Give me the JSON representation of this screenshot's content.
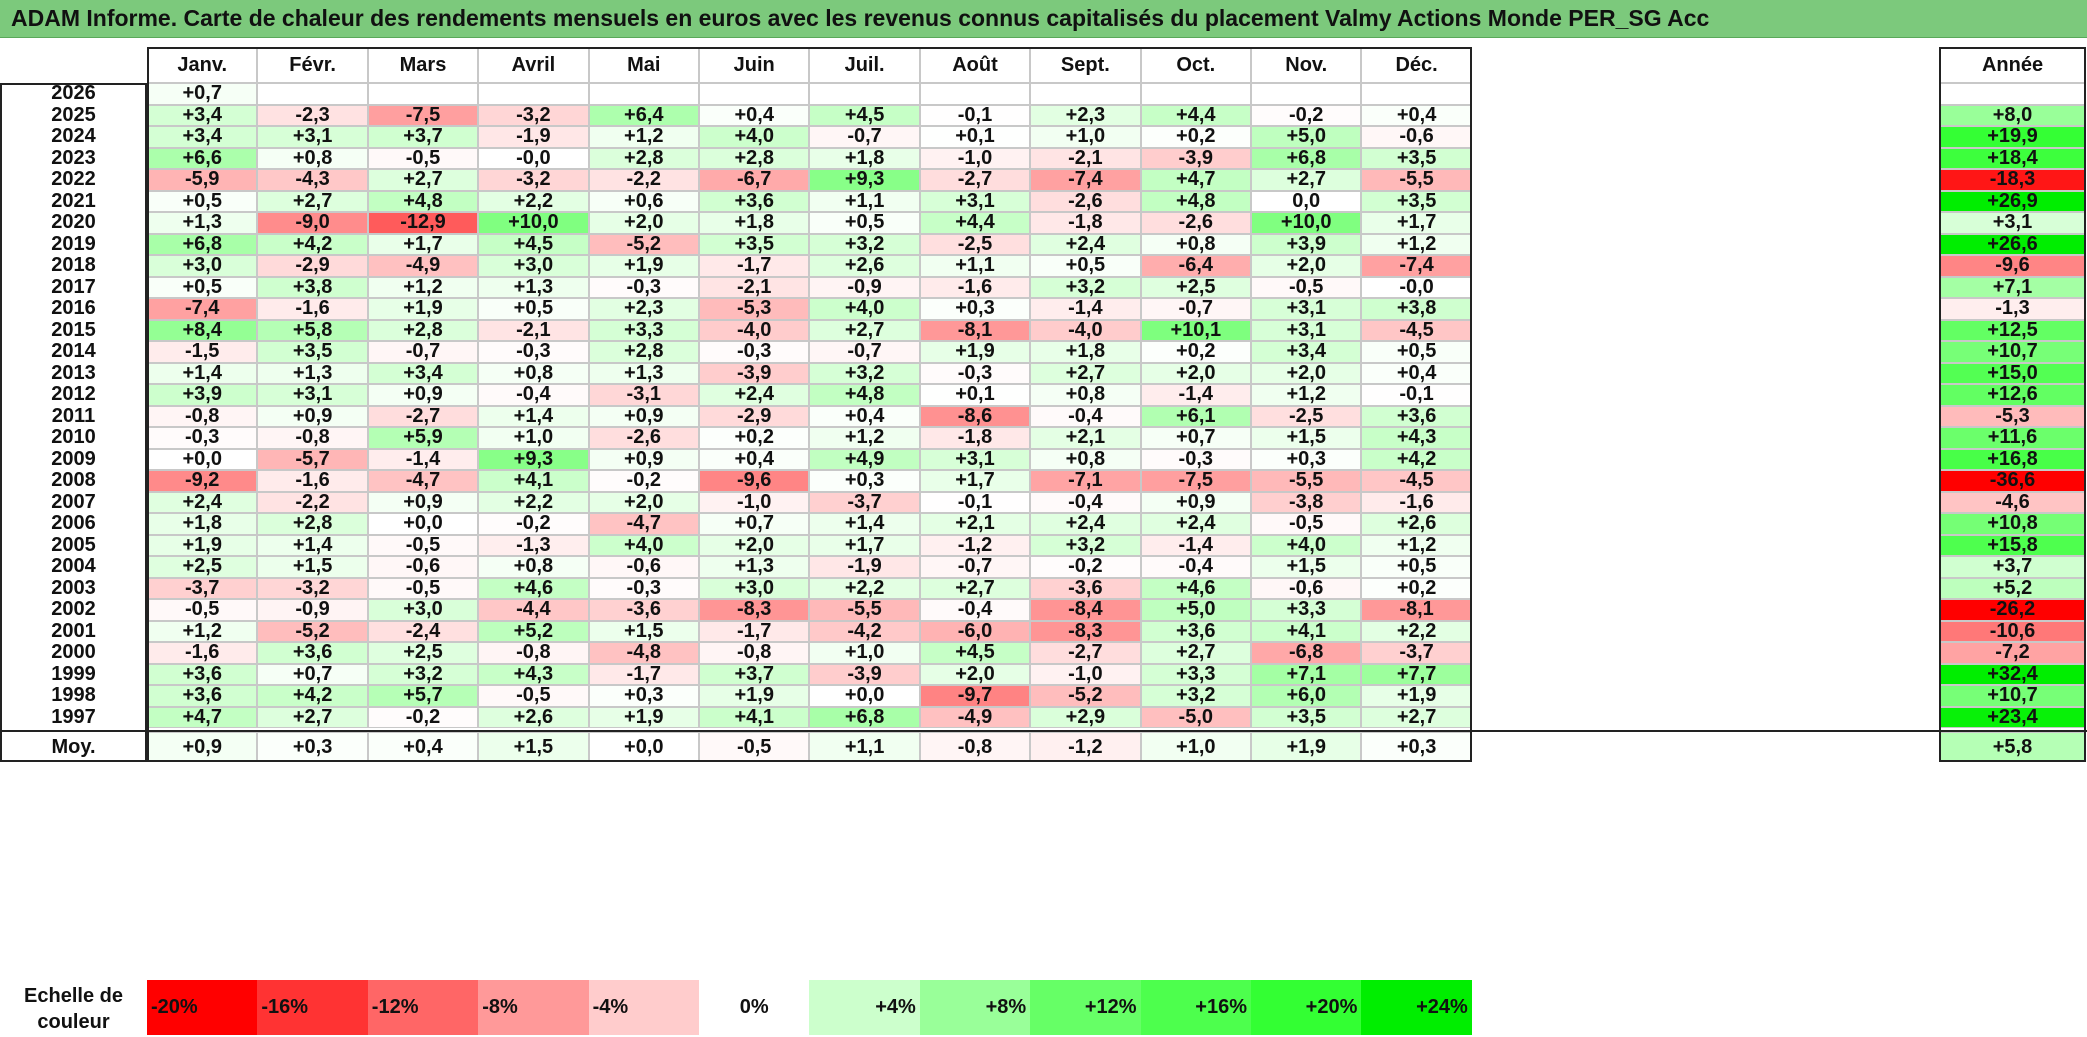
{
  "title": "ADAM Informe. Carte de chaleur des rendements mensuels en euros avec les revenus connus capitalisés du placement Valmy Actions Monde PER_SG Acc",
  "chart_data": {
    "type": "heatmap",
    "title": "ADAM Informe. Carte de chaleur des rendements mensuels en euros avec les revenus connus capitalisés du placement Valmy Actions Monde PER_SG Acc",
    "columns": [
      "Janv.",
      "Févr.",
      "Mars",
      "Avril",
      "Mai",
      "Juin",
      "Juil.",
      "Août",
      "Sept.",
      "Oct.",
      "Nov.",
      "Déc."
    ],
    "annual_header": "Année",
    "rows": [
      {
        "year": "2026",
        "values": [
          "+0,7",
          "",
          "",
          "",
          "",
          "",
          "",
          "",
          "",
          "",
          "",
          ""
        ],
        "annual": ""
      },
      {
        "year": "2025",
        "values": [
          "+3,4",
          "-2,3",
          "-7,5",
          "-3,2",
          "+6,4",
          "+0,4",
          "+4,5",
          "-0,1",
          "+2,3",
          "+4,4",
          "-0,2",
          "+0,4"
        ],
        "annual": "+8,0"
      },
      {
        "year": "2024",
        "values": [
          "+3,4",
          "+3,1",
          "+3,7",
          "-1,9",
          "+1,2",
          "+4,0",
          "-0,7",
          "+0,1",
          "+1,0",
          "+0,2",
          "+5,0",
          "-0,6"
        ],
        "annual": "+19,9"
      },
      {
        "year": "2023",
        "values": [
          "+6,6",
          "+0,8",
          "-0,5",
          "-0,0",
          "+2,8",
          "+2,8",
          "+1,8",
          "-1,0",
          "-2,1",
          "-3,9",
          "+6,8",
          "+3,5"
        ],
        "annual": "+18,4"
      },
      {
        "year": "2022",
        "values": [
          "-5,9",
          "-4,3",
          "+2,7",
          "-3,2",
          "-2,2",
          "-6,7",
          "+9,3",
          "-2,7",
          "-7,4",
          "+4,7",
          "+2,7",
          "-5,5"
        ],
        "annual": "-18,3"
      },
      {
        "year": "2021",
        "values": [
          "+0,5",
          "+2,7",
          "+4,8",
          "+2,2",
          "+0,6",
          "+3,6",
          "+1,1",
          "+3,1",
          "-2,6",
          "+4,8",
          "0,0",
          "+3,5"
        ],
        "annual": "+26,9"
      },
      {
        "year": "2020",
        "values": [
          "+1,3",
          "-9,0",
          "-12,9",
          "+10,0",
          "+2,0",
          "+1,8",
          "+0,5",
          "+4,4",
          "-1,8",
          "-2,6",
          "+10,0",
          "+1,7"
        ],
        "annual": "+3,1"
      },
      {
        "year": "2019",
        "values": [
          "+6,8",
          "+4,2",
          "+1,7",
          "+4,5",
          "-5,2",
          "+3,5",
          "+3,2",
          "-2,5",
          "+2,4",
          "+0,8",
          "+3,9",
          "+1,2"
        ],
        "annual": "+26,6"
      },
      {
        "year": "2018",
        "values": [
          "+3,0",
          "-2,9",
          "-4,9",
          "+3,0",
          "+1,9",
          "-1,7",
          "+2,6",
          "+1,1",
          "+0,5",
          "-6,4",
          "+2,0",
          "-7,4"
        ],
        "annual": "-9,6"
      },
      {
        "year": "2017",
        "values": [
          "+0,5",
          "+3,8",
          "+1,2",
          "+1,3",
          "-0,3",
          "-2,1",
          "-0,9",
          "-1,6",
          "+3,2",
          "+2,5",
          "-0,5",
          "-0,0"
        ],
        "annual": "+7,1"
      },
      {
        "year": "2016",
        "values": [
          "-7,4",
          "-1,6",
          "+1,9",
          "+0,5",
          "+2,3",
          "-5,3",
          "+4,0",
          "+0,3",
          "-1,4",
          "-0,7",
          "+3,1",
          "+3,8"
        ],
        "annual": "-1,3"
      },
      {
        "year": "2015",
        "values": [
          "+8,4",
          "+5,8",
          "+2,8",
          "-2,1",
          "+3,3",
          "-4,0",
          "+2,7",
          "-8,1",
          "-4,0",
          "+10,1",
          "+3,1",
          "-4,5"
        ],
        "annual": "+12,5"
      },
      {
        "year": "2014",
        "values": [
          "-1,5",
          "+3,5",
          "-0,7",
          "-0,3",
          "+2,8",
          "-0,3",
          "-0,7",
          "+1,9",
          "+1,8",
          "+0,2",
          "+3,4",
          "+0,5"
        ],
        "annual": "+10,7"
      },
      {
        "year": "2013",
        "values": [
          "+1,4",
          "+1,3",
          "+3,4",
          "+0,8",
          "+1,3",
          "-3,9",
          "+3,2",
          "-0,3",
          "+2,7",
          "+2,0",
          "+2,0",
          "+0,4"
        ],
        "annual": "+15,0"
      },
      {
        "year": "2012",
        "values": [
          "+3,9",
          "+3,1",
          "+0,9",
          "-0,4",
          "-3,1",
          "+2,4",
          "+4,8",
          "+0,1",
          "+0,8",
          "-1,4",
          "+1,2",
          "-0,1"
        ],
        "annual": "+12,6"
      },
      {
        "year": "2011",
        "values": [
          "-0,8",
          "+0,9",
          "-2,7",
          "+1,4",
          "+0,9",
          "-2,9",
          "+0,4",
          "-8,6",
          "-0,4",
          "+6,1",
          "-2,5",
          "+3,6"
        ],
        "annual": "-5,3"
      },
      {
        "year": "2010",
        "values": [
          "-0,3",
          "-0,8",
          "+5,9",
          "+1,0",
          "-2,6",
          "+0,2",
          "+1,2",
          "-1,8",
          "+2,1",
          "+0,7",
          "+1,5",
          "+4,3"
        ],
        "annual": "+11,6"
      },
      {
        "year": "2009",
        "values": [
          "+0,0",
          "-5,7",
          "-1,4",
          "+9,3",
          "+0,9",
          "+0,4",
          "+4,9",
          "+3,1",
          "+0,8",
          "-0,3",
          "+0,3",
          "+4,2"
        ],
        "annual": "+16,8"
      },
      {
        "year": "2008",
        "values": [
          "-9,2",
          "-1,6",
          "-4,7",
          "+4,1",
          "-0,2",
          "-9,6",
          "+0,3",
          "+1,7",
          "-7,1",
          "-7,5",
          "-5,5",
          "-4,5"
        ],
        "annual": "-36,6"
      },
      {
        "year": "2007",
        "values": [
          "+2,4",
          "-2,2",
          "+0,9",
          "+2,2",
          "+2,0",
          "-1,0",
          "-3,7",
          "-0,1",
          "-0,4",
          "+0,9",
          "-3,8",
          "-1,6"
        ],
        "annual": "-4,6"
      },
      {
        "year": "2006",
        "values": [
          "+1,8",
          "+2,8",
          "+0,0",
          "-0,2",
          "-4,7",
          "+0,7",
          "+1,4",
          "+2,1",
          "+2,4",
          "+2,4",
          "-0,5",
          "+2,6"
        ],
        "annual": "+10,8"
      },
      {
        "year": "2005",
        "values": [
          "+1,9",
          "+1,4",
          "-0,5",
          "-1,3",
          "+4,0",
          "+2,0",
          "+1,7",
          "-1,2",
          "+3,2",
          "-1,4",
          "+4,0",
          "+1,2"
        ],
        "annual": "+15,8"
      },
      {
        "year": "2004",
        "values": [
          "+2,5",
          "+1,5",
          "-0,6",
          "+0,8",
          "-0,6",
          "+1,3",
          "-1,9",
          "-0,7",
          "-0,2",
          "-0,4",
          "+1,5",
          "+0,5"
        ],
        "annual": "+3,7"
      },
      {
        "year": "2003",
        "values": [
          "-3,7",
          "-3,2",
          "-0,5",
          "+4,6",
          "-0,3",
          "+3,0",
          "+2,2",
          "+2,7",
          "-3,6",
          "+4,6",
          "-0,6",
          "+0,2"
        ],
        "annual": "+5,2"
      },
      {
        "year": "2002",
        "values": [
          "-0,5",
          "-0,9",
          "+3,0",
          "-4,4",
          "-3,6",
          "-8,3",
          "-5,5",
          "-0,4",
          "-8,4",
          "+5,0",
          "+3,3",
          "-8,1"
        ],
        "annual": "-26,2"
      },
      {
        "year": "2001",
        "values": [
          "+1,2",
          "-5,2",
          "-2,4",
          "+5,2",
          "+1,5",
          "-1,7",
          "-4,2",
          "-6,0",
          "-8,3",
          "+3,6",
          "+4,1",
          "+2,2"
        ],
        "annual": "-10,6"
      },
      {
        "year": "2000",
        "values": [
          "-1,6",
          "+3,6",
          "+2,5",
          "-0,8",
          "-4,8",
          "-0,8",
          "+1,0",
          "+4,5",
          "-2,7",
          "+2,7",
          "-6,8",
          "-3,7"
        ],
        "annual": "-7,2"
      },
      {
        "year": "1999",
        "values": [
          "+3,6",
          "+0,7",
          "+3,2",
          "+4,3",
          "-1,7",
          "+3,7",
          "-3,9",
          "+2,0",
          "-1,0",
          "+3,3",
          "+7,1",
          "+7,7"
        ],
        "annual": "+32,4"
      },
      {
        "year": "1998",
        "values": [
          "+3,6",
          "+4,2",
          "+5,7",
          "-0,5",
          "+0,3",
          "+1,9",
          "+0,0",
          "-9,7",
          "-5,2",
          "+3,2",
          "+6,0",
          "+1,9"
        ],
        "annual": "+10,7"
      },
      {
        "year": "1997",
        "values": [
          "+4,7",
          "+2,7",
          "-0,2",
          "+2,6",
          "+1,9",
          "+4,1",
          "+6,8",
          "-4,9",
          "+2,9",
          "-5,0",
          "+3,5",
          "+2,7"
        ],
        "annual": "+23,4"
      }
    ],
    "average_row": {
      "label": "Moy.",
      "values": [
        "+0,9",
        "+0,3",
        "+0,4",
        "+1,5",
        "+0,0",
        "-0,5",
        "+1,1",
        "-0,8",
        "-1,2",
        "+1,0",
        "+1,9",
        "+0,3"
      ],
      "annual": "+5,8"
    },
    "color_scale": {
      "label_line1": "Echelle de",
      "label_line2": "couleur",
      "steps": [
        {
          "label": "-20%",
          "value": -20,
          "color": "#ff0000"
        },
        {
          "label": "-16%",
          "value": -16,
          "color": "#ff3333"
        },
        {
          "label": "-12%",
          "value": -12,
          "color": "#ff6666"
        },
        {
          "label": "-8%",
          "value": -8,
          "color": "#ff9999"
        },
        {
          "label": "-4%",
          "value": -4,
          "color": "#ffcccc"
        },
        {
          "label": "0%",
          "value": 0,
          "color": "#ffffff"
        },
        {
          "label": "+4%",
          "value": 4,
          "color": "#ccffcc"
        },
        {
          "label": "+8%",
          "value": 8,
          "color": "#99ff99"
        },
        {
          "label": "+12%",
          "value": 12,
          "color": "#66ff66"
        },
        {
          "label": "+16%",
          "value": 16,
          "color": "#4dff4d"
        },
        {
          "label": "+20%",
          "value": 20,
          "color": "#33ff33"
        },
        {
          "label": "+24%",
          "value": 24,
          "color": "#00ee00"
        }
      ]
    }
  }
}
